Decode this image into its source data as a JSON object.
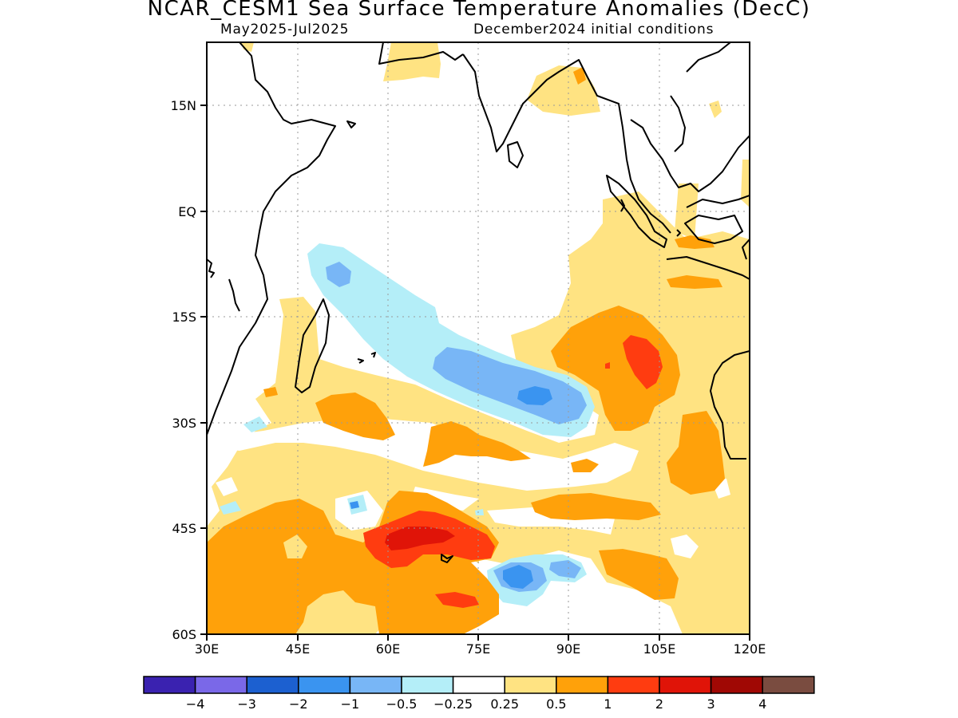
{
  "title": "NCAR_CESM1 Sea Surface Temperature Anomalies (DecC)",
  "period": "May2025-Jul2025",
  "initial_conditions": "December2024 initial conditions",
  "lat_labels": [
    "15N",
    "EQ",
    "15S",
    "30S",
    "45S",
    "60S"
  ],
  "lon_labels": [
    "30E",
    "45E",
    "60E",
    "75E",
    "90E",
    "105E",
    "120E"
  ],
  "colorbar": {
    "colors": [
      "#3a22b0",
      "#7a68e8",
      "#1c60d0",
      "#3a94f0",
      "#78b6f6",
      "#b4eef8",
      "#ffffff",
      "#ffe382",
      "#ffa10a",
      "#ff3c10",
      "#e01408",
      "#a00804",
      "#7a4c40"
    ],
    "tick_labels": [
      "-4",
      "-3",
      "-2",
      "-1",
      "-0.5",
      "-0.25",
      "0.25",
      "0.5",
      "1",
      "2",
      "3",
      "4"
    ]
  },
  "map": {
    "lon_range": [
      30,
      120
    ],
    "lat_range": [
      -60,
      24
    ],
    "ocean_color": "#ffffff",
    "coastline_color": "#000000"
  }
}
